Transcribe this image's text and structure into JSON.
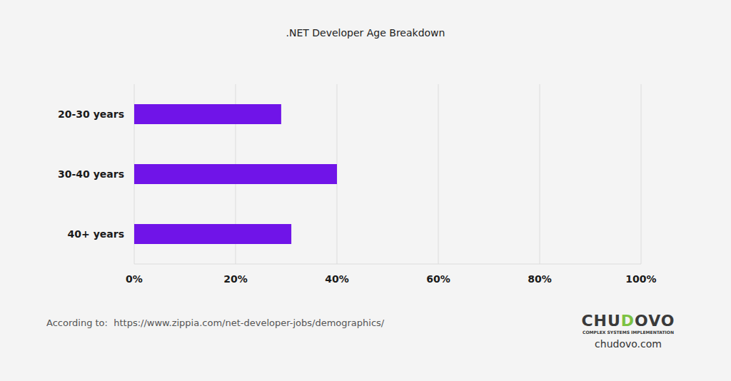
{
  "chart_data": {
    "type": "bar",
    "orientation": "horizontal",
    "title": ".NET Developer Age Breakdown",
    "categories": [
      "20-30 years",
      "30-40 years",
      "40+ years"
    ],
    "values": [
      29,
      40,
      31
    ],
    "color": "#7014e8",
    "xlim": [
      0,
      100
    ],
    "xticks": [
      {
        "value": 0,
        "label": "0%"
      },
      {
        "value": 20,
        "label": "20%"
      },
      {
        "value": 40,
        "label": "40%"
      },
      {
        "value": 60,
        "label": "60%"
      },
      {
        "value": 80,
        "label": "80%"
      },
      {
        "value": 100,
        "label": "100%"
      }
    ],
    "grid": true,
    "source": "According to:  https://www.zippia.com/net-developer-jobs/demographics/",
    "logo": "CHUDOVO",
    "logo_subtitle": "COMPLEX SYSTEMS IMPLEMENTATION",
    "website": "chudovo.com"
  }
}
